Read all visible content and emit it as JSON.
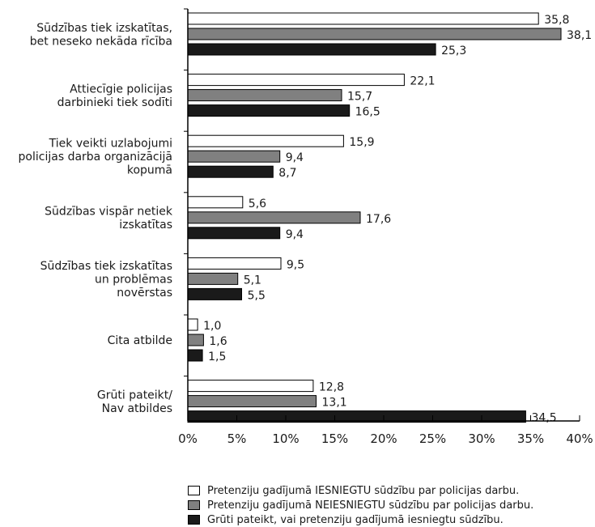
{
  "chart_data": {
    "type": "bar",
    "orientation": "horizontal",
    "categories": [
      [
        "Sūdzības tiek izskatītas,",
        "bet neseko nekāda rīcība"
      ],
      [
        "Attiecīgie policijas",
        "darbinieki tiek sodīti"
      ],
      [
        "Tiek veikti uzlabojumi",
        "policijas darba organizācijā",
        "kopumā"
      ],
      [
        "Sūdzības vispār netiek",
        "izskatītas"
      ],
      [
        "Sūdzības tiek izskatītas",
        "un problēmas",
        "novērstas"
      ],
      [
        "Cita atbilde"
      ],
      [
        "Grūti pateikt/",
        "Nav atbildes"
      ]
    ],
    "series": [
      {
        "name": "Pretenziju gadījumā IESNIEGTU sūdzību par policijas darbu.",
        "color": "#ffffff",
        "values": [
          35.8,
          22.1,
          15.9,
          5.6,
          9.5,
          1.0,
          12.8
        ]
      },
      {
        "name": "Pretenziju gadījumā NEIESNIEGTU sūdzību par policijas darbu.",
        "color": "#808080",
        "values": [
          38.1,
          15.7,
          9.4,
          17.6,
          5.1,
          1.6,
          13.1
        ]
      },
      {
        "name": "Grūti pateikt, vai pretenziju gadījumā iesniegtu sūdzību.",
        "color": "#1a1a1a",
        "values": [
          25.3,
          16.5,
          8.7,
          9.4,
          5.5,
          1.5,
          34.5
        ]
      }
    ],
    "value_labels": [
      [
        "35,8",
        "22,1",
        "15,9",
        "5,6",
        "9,5",
        "1,0",
        "12,8"
      ],
      [
        "38,1",
        "15,7",
        "9,4",
        "17,6",
        "5,1",
        "1,6",
        "13,1"
      ],
      [
        "25,3",
        "16,5",
        "8,7",
        "9,4",
        "5,5",
        "1,5",
        "34,5"
      ]
    ],
    "xticks": [
      "0%",
      "5%",
      "10%",
      "15%",
      "20%",
      "25%",
      "30%",
      "35%",
      "40%"
    ],
    "xlim": [
      0,
      40
    ],
    "grid": false,
    "legend_position": "bottom"
  }
}
